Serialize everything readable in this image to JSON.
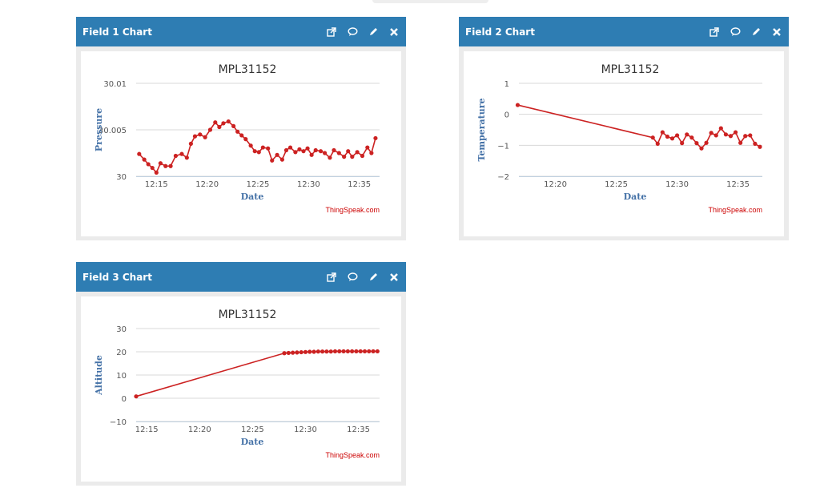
{
  "widgets": [
    {
      "title": "Field 1 Chart",
      "tools": [
        "external-link-icon",
        "comment-icon",
        "pencil-icon",
        "close-icon"
      ]
    },
    {
      "title": "Field 2 Chart",
      "tools": [
        "external-link-icon",
        "comment-icon",
        "pencil-icon",
        "close-icon"
      ]
    },
    {
      "title": "Field 3 Chart",
      "tools": [
        "external-link-icon",
        "comment-icon",
        "pencil-icon",
        "close-icon"
      ]
    }
  ],
  "credit": "ThingSpeak.com",
  "colors": {
    "header": "#2e7db3",
    "series": "#cc2222",
    "frame": "#ebebeb"
  },
  "chart_data": [
    {
      "type": "line",
      "title": "MPL31152",
      "xlabel": "Date",
      "ylabel": "Pressure",
      "ylim": [
        30,
        30.01
      ],
      "yticks": [
        "30",
        "30.005",
        "30.01"
      ],
      "ytickvals": [
        30,
        30.005,
        30.01
      ],
      "xlim": [
        "12:13",
        "12:37"
      ],
      "xticks": [
        "12:15",
        "12:20",
        "12:25",
        "12:30",
        "12:35"
      ],
      "series": [
        {
          "x": [
            "12:13.3",
            "12:13.8",
            "12:14.2",
            "12:14.6",
            "12:15.0",
            "12:15.4",
            "12:15.9",
            "12:16.4",
            "12:16.9",
            "12:17.5",
            "12:18.0",
            "12:18.4",
            "12:18.8",
            "12:19.3",
            "12:19.8",
            "12:20.3",
            "12:20.8",
            "12:21.2",
            "12:21.6",
            "12:22.1",
            "12:22.6",
            "12:23.0",
            "12:23.4",
            "12:23.8",
            "12:24.3",
            "12:24.7",
            "12:25.1",
            "12:25.5",
            "12:26.0",
            "12:26.4",
            "12:26.9",
            "12:27.4",
            "12:27.8",
            "12:28.2",
            "12:28.7",
            "12:29.1",
            "12:29.5",
            "12:29.9",
            "12:30.3",
            "12:30.7",
            "12:31.2",
            "12:31.6",
            "12:32.1",
            "12:32.5",
            "12:33.0",
            "12:33.5",
            "12:33.9",
            "12:34.3",
            "12:34.8",
            "12:35.3",
            "12:35.8",
            "12:36.2",
            "12:36.6"
          ],
          "y": [
            30.0024,
            30.0018,
            30.0013,
            30.0009,
            30.0004,
            30.0014,
            30.0011,
            30.0011,
            30.0022,
            30.0024,
            30.002,
            30.0035,
            30.0043,
            30.0045,
            30.0042,
            30.005,
            30.0058,
            30.0053,
            30.0057,
            30.0059,
            30.0054,
            30.0048,
            30.0044,
            30.004,
            30.0033,
            30.0027,
            30.0026,
            30.0031,
            30.003,
            30.0017,
            30.0023,
            30.0018,
            30.0028,
            30.0031,
            30.0026,
            30.0029,
            30.0027,
            30.003,
            30.0023,
            30.0028,
            30.0027,
            30.0025,
            30.002,
            30.0028,
            30.0025,
            30.0021,
            30.0027,
            30.0021,
            30.0026,
            30.0022,
            30.0031,
            30.0025,
            30.0041
          ]
        }
      ]
    },
    {
      "type": "line",
      "title": "MPL31152",
      "xlabel": "Date",
      "ylabel": "Temperature",
      "ylim": [
        -2,
        1
      ],
      "yticks": [
        "1",
        "0",
        "−1",
        "−2"
      ],
      "ytickvals": [
        1,
        0,
        -1,
        -2
      ],
      "xlim": [
        "12:17",
        "12:37"
      ],
      "xticks": [
        "12:20",
        "12:25",
        "12:30",
        "12:35"
      ],
      "series": [
        {
          "x": [
            "12:16.9",
            "12:28.0",
            "12:28.4",
            "12:28.8",
            "12:29.2",
            "12:29.6",
            "12:30.0",
            "12:30.4",
            "12:30.8",
            "12:31.2",
            "12:31.6",
            "12:32.0",
            "12:32.4",
            "12:32.8",
            "12:33.2",
            "12:33.6",
            "12:34.0",
            "12:34.4",
            "12:34.8",
            "12:35.2",
            "12:35.6",
            "12:36.0",
            "12:36.4",
            "12:36.8"
          ],
          "y": [
            0.3,
            -0.75,
            -0.95,
            -0.58,
            -0.72,
            -0.78,
            -0.68,
            -0.93,
            -0.65,
            -0.75,
            -0.93,
            -1.1,
            -0.92,
            -0.6,
            -0.68,
            -0.45,
            -0.65,
            -0.7,
            -0.58,
            -0.92,
            -0.7,
            -0.68,
            -0.95,
            -1.05
          ]
        }
      ]
    },
    {
      "type": "line",
      "title": "MPL31152",
      "xlabel": "Date",
      "ylabel": "Altitude",
      "ylim": [
        -10,
        30
      ],
      "yticks": [
        "30",
        "20",
        "10",
        "0",
        "−10"
      ],
      "ytickvals": [
        30,
        20,
        10,
        0,
        -10
      ],
      "xlim": [
        "12:14",
        "12:37"
      ],
      "xticks": [
        "12:15",
        "12:20",
        "12:25",
        "12:30",
        "12:35"
      ],
      "series": [
        {
          "x": [
            "12:14.0",
            "12:28.0",
            "12:28.4",
            "12:28.8",
            "12:29.2",
            "12:29.6",
            "12:30.0",
            "12:30.4",
            "12:30.8",
            "12:31.2",
            "12:31.6",
            "12:32.0",
            "12:32.4",
            "12:32.8",
            "12:33.2",
            "12:33.6",
            "12:34.0",
            "12:34.4",
            "12:34.8",
            "12:35.2",
            "12:35.6",
            "12:36.0",
            "12:36.4",
            "12:36.8"
          ],
          "y": [
            0.8,
            19.4,
            19.5,
            19.6,
            19.7,
            19.8,
            19.9,
            20.0,
            20.0,
            20.1,
            20.1,
            20.1,
            20.1,
            20.2,
            20.2,
            20.2,
            20.2,
            20.2,
            20.2,
            20.2,
            20.2,
            20.2,
            20.2,
            20.2
          ]
        }
      ]
    }
  ]
}
